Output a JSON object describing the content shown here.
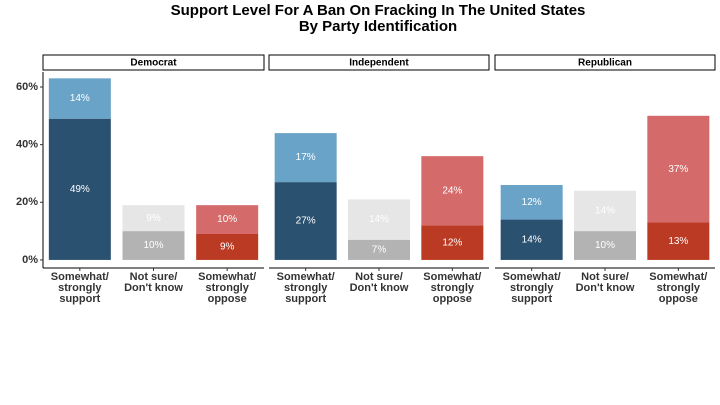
{
  "chart_data": {
    "type": "bar",
    "stacked": true,
    "title": "Support Level For A Ban On Fracking In The United States",
    "subtitle": "By Party Identification",
    "ylim": [
      -2.8,
      65.2
    ],
    "yticks": [
      {
        "value": 0,
        "label": "0%"
      },
      {
        "value": 20,
        "label": "20%"
      },
      {
        "value": 40,
        "label": "40%"
      },
      {
        "value": 60,
        "label": "60%"
      }
    ],
    "facets": [
      {
        "facet": "Democrat",
        "categories": [
          "Somewhat/\nstrongly\nsupport",
          "Not sure/\nDon't know",
          "Somewhat/\nstrongly\noppose"
        ],
        "series": [
          {
            "colors": [
              "#2b5170",
              "#b3b3b3",
              "#bb3a23"
            ],
            "values": [
              49,
              10,
              9
            ],
            "value_labels": [
              "49%",
              "10%",
              "9%"
            ]
          },
          {
            "colors": [
              "#6aa3c8",
              "#e6e6e6",
              "#d46a6a"
            ],
            "values": [
              14,
              9,
              10
            ],
            "value_labels": [
              "14%",
              "9%",
              "10%"
            ]
          }
        ]
      },
      {
        "facet": "Independent",
        "categories": [
          "Somewhat/\nstrongly\nsupport",
          "Not sure/\nDon't know",
          "Somewhat/\nstrongly\noppose"
        ],
        "series": [
          {
            "colors": [
              "#2b5170",
              "#b3b3b3",
              "#bb3a23"
            ],
            "values": [
              27,
              7,
              12
            ],
            "value_labels": [
              "27%",
              "7%",
              "12%"
            ]
          },
          {
            "colors": [
              "#6aa3c8",
              "#e6e6e6",
              "#d46a6a"
            ],
            "values": [
              17,
              14,
              24
            ],
            "value_labels": [
              "17%",
              "14%",
              "24%"
            ]
          }
        ]
      },
      {
        "facet": "Republican",
        "categories": [
          "Somewhat/\nstrongly\nsupport",
          "Not sure/\nDon't know",
          "Somewhat/\nstrongly\noppose"
        ],
        "series": [
          {
            "colors": [
              "#2b5170",
              "#b3b3b3",
              "#bb3a23"
            ],
            "values": [
              14,
              10,
              13
            ],
            "value_labels": [
              "14%",
              "10%",
              "13%"
            ]
          },
          {
            "colors": [
              "#6aa3c8",
              "#e6e6e6",
              "#d46a6a"
            ],
            "values": [
              12,
              14,
              37
            ],
            "value_labels": [
              "12%",
              "14%",
              "37%"
            ]
          }
        ]
      }
    ]
  }
}
